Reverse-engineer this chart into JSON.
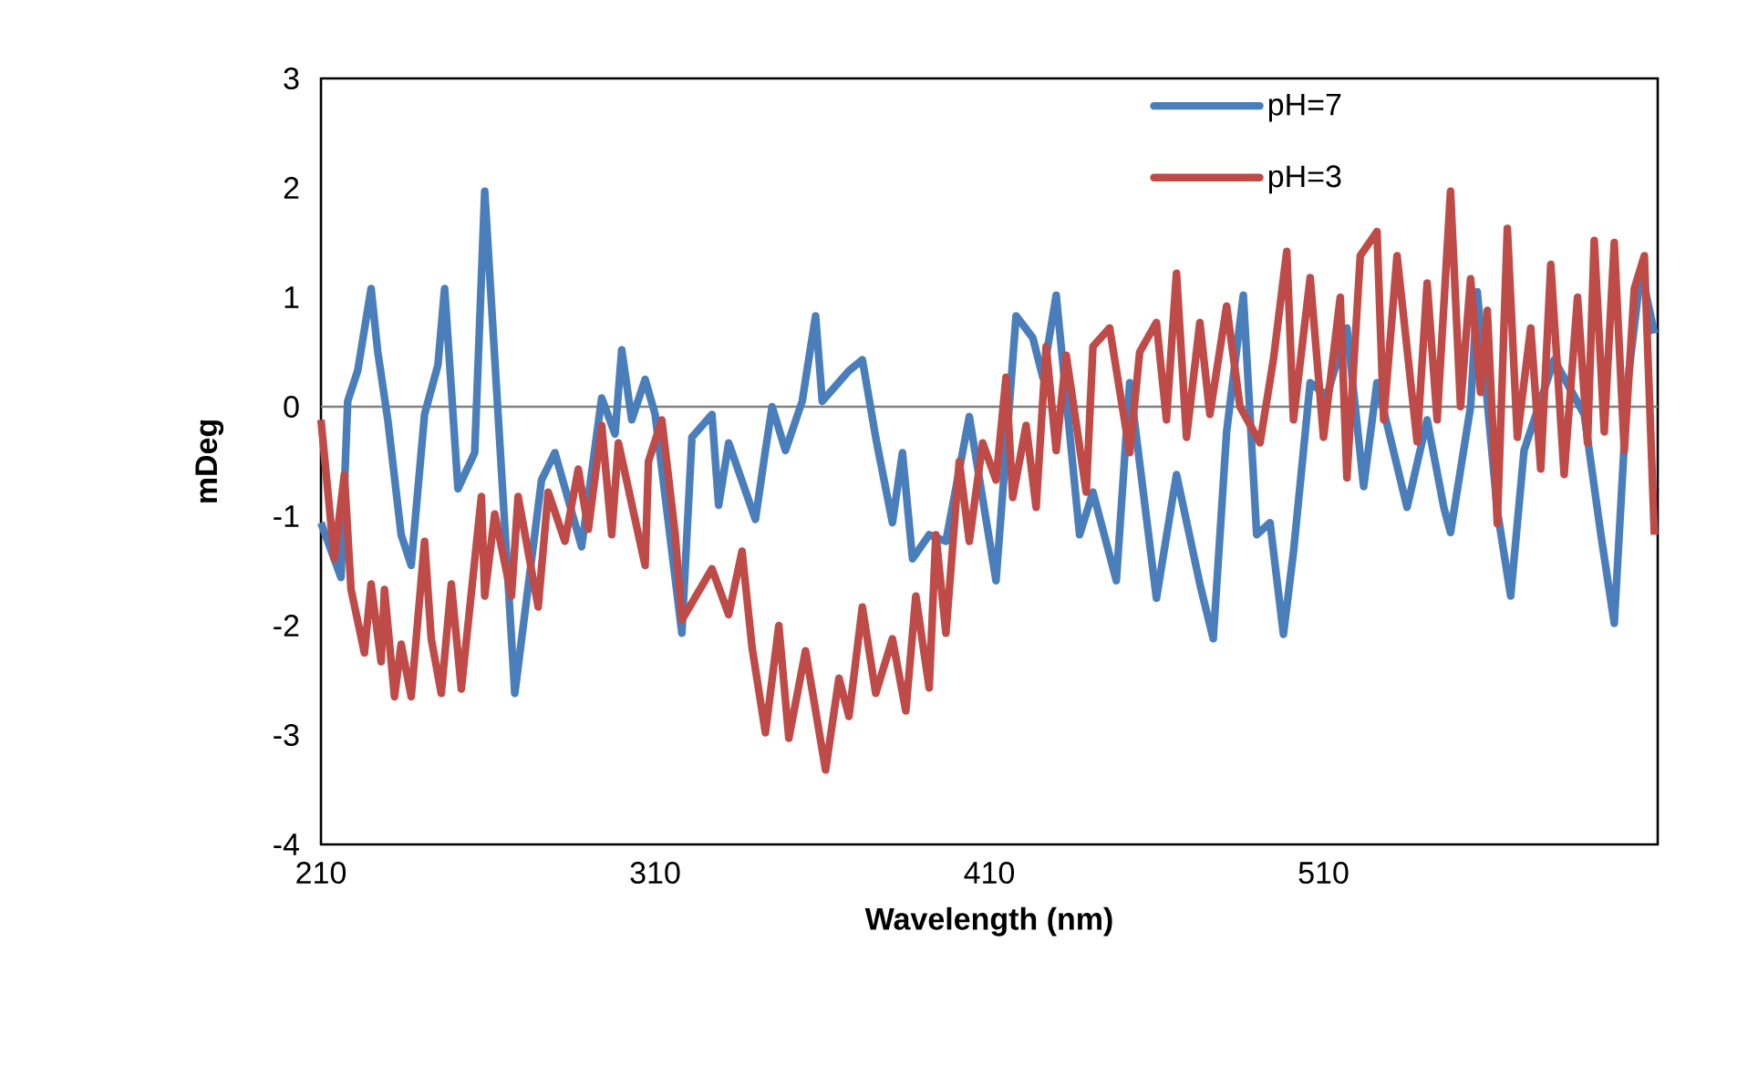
{
  "chart_data": {
    "type": "line",
    "xlabel": "Wavelength (nm)",
    "ylabel": "mDeg",
    "xlim": [
      210,
      610
    ],
    "ylim": [
      -4,
      3
    ],
    "xticks": [
      210,
      310,
      410,
      510
    ],
    "yticks": [
      -4,
      -3,
      -2,
      -1,
      0,
      1,
      2,
      3
    ],
    "legend": "top right",
    "ref_lines": [
      {
        "axis": "y",
        "value": 0,
        "color": "#808080"
      }
    ],
    "series": [
      {
        "name": "pH=7",
        "color": "#4a7ebb",
        "x": [
          210,
          216,
          218,
          221,
          225,
          227,
          230,
          234,
          237,
          241,
          245,
          247,
          251,
          256,
          259,
          268,
          276,
          280,
          288,
          294,
          298,
          300,
          303,
          307,
          310,
          318,
          321,
          327,
          329,
          332,
          340,
          343,
          345,
          349,
          354,
          358,
          360,
          368,
          372,
          376,
          381,
          384,
          387,
          392,
          397,
          404,
          412,
          418,
          423,
          426,
          430,
          437,
          441,
          448,
          452,
          460,
          466,
          473,
          477,
          481,
          486,
          490,
          494,
          498,
          501,
          506,
          511,
          517,
          522,
          526,
          535,
          541,
          546,
          548,
          554,
          556,
          562,
          566,
          570,
          579,
          588,
          593,
          597,
          601,
          605,
          609
        ],
        "values": [
          -1.06,
          -1.56,
          0.05,
          0.33,
          1.08,
          0.5,
          -0.12,
          -1.17,
          -1.45,
          -0.07,
          0.38,
          1.08,
          -0.75,
          -0.42,
          1.97,
          -2.62,
          -0.67,
          -0.42,
          -1.28,
          0.08,
          -0.25,
          0.52,
          -0.12,
          0.25,
          -0.07,
          -2.07,
          -0.28,
          -0.07,
          -0.9,
          -0.33,
          -1.03,
          -0.4,
          0,
          -0.4,
          0.05,
          0.83,
          0.05,
          0.33,
          0.43,
          -0.28,
          -1.06,
          -0.42,
          -1.39,
          -1.17,
          -1.23,
          -0.09,
          -1.59,
          0.83,
          0.63,
          0.27,
          1.02,
          -1.17,
          -0.78,
          -1.59,
          0.22,
          -1.75,
          -0.62,
          -1.62,
          -2.12,
          -0.23,
          1.02,
          -1.17,
          -1.06,
          -2.08,
          -1.33,
          0.22,
          0.1,
          0.72,
          -0.73,
          0.22,
          -0.92,
          -0.12,
          -0.92,
          -1.15,
          0,
          1.05,
          -0.95,
          -1.73,
          -0.4,
          0.43,
          -0.07,
          -1.17,
          -1.98,
          0.22,
          1.25,
          0.67
        ]
      },
      {
        "name": "pH=3",
        "color": "#be4b48",
        "x": [
          210,
          214,
          217,
          219,
          223,
          225,
          228,
          229,
          232,
          234,
          237,
          241,
          243,
          246,
          249,
          252,
          258,
          259,
          262,
          267,
          269,
          275,
          278,
          283,
          287,
          290,
          294,
          297,
          299,
          307,
          308,
          312,
          316,
          318,
          327,
          332,
          336,
          339,
          343,
          347,
          350,
          355,
          361,
          365,
          368,
          372,
          376,
          381,
          385,
          388,
          392,
          394,
          397,
          401,
          404,
          408,
          412,
          415,
          417,
          421,
          424,
          427,
          430,
          433,
          439,
          441,
          446,
          452,
          455,
          460,
          463,
          466,
          469,
          473,
          476,
          481,
          485,
          491,
          495,
          499,
          501,
          506,
          510,
          515,
          517,
          521,
          526,
          528,
          532,
          538,
          541,
          544,
          548,
          551,
          554,
          557,
          559,
          562,
          565,
          568,
          572,
          575,
          578,
          582,
          586,
          589,
          591,
          594,
          597,
          600,
          603,
          606,
          609
        ],
        "values": [
          -0.12,
          -1.39,
          -0.62,
          -1.67,
          -2.25,
          -1.62,
          -2.33,
          -1.67,
          -2.65,
          -2.17,
          -2.65,
          -1.23,
          -2.12,
          -2.62,
          -1.62,
          -2.58,
          -0.82,
          -1.73,
          -0.98,
          -1.73,
          -0.82,
          -1.83,
          -0.78,
          -1.23,
          -0.57,
          -1.12,
          -0.17,
          -1.17,
          -0.33,
          -1.45,
          -0.5,
          -0.12,
          -1.17,
          -1.95,
          -1.48,
          -1.9,
          -1.32,
          -2.2,
          -2.98,
          -2.0,
          -3.03,
          -2.23,
          -3.32,
          -2.48,
          -2.83,
          -1.83,
          -2.62,
          -2.12,
          -2.78,
          -1.73,
          -2.57,
          -1.17,
          -2.07,
          -0.5,
          -1.23,
          -0.33,
          -0.67,
          0.27,
          -0.83,
          -0.17,
          -0.92,
          0.55,
          -0.4,
          0.47,
          -0.78,
          0.55,
          0.72,
          -0.42,
          0.5,
          0.77,
          -0.12,
          1.22,
          -0.28,
          0.77,
          -0.07,
          0.92,
          0,
          -0.33,
          0.43,
          1.42,
          -0.12,
          1.18,
          -0.28,
          1.0,
          -0.65,
          1.38,
          1.6,
          -0.12,
          1.38,
          -0.32,
          1.13,
          -0.12,
          1.97,
          0,
          1.17,
          0.13,
          0.88,
          -1.07,
          1.63,
          -0.28,
          0.72,
          -0.57,
          1.3,
          -0.62,
          1.0,
          -0.33,
          1.52,
          -0.23,
          1.5,
          -0.4,
          1.08,
          1.38,
          -1.17
        ]
      }
    ]
  }
}
